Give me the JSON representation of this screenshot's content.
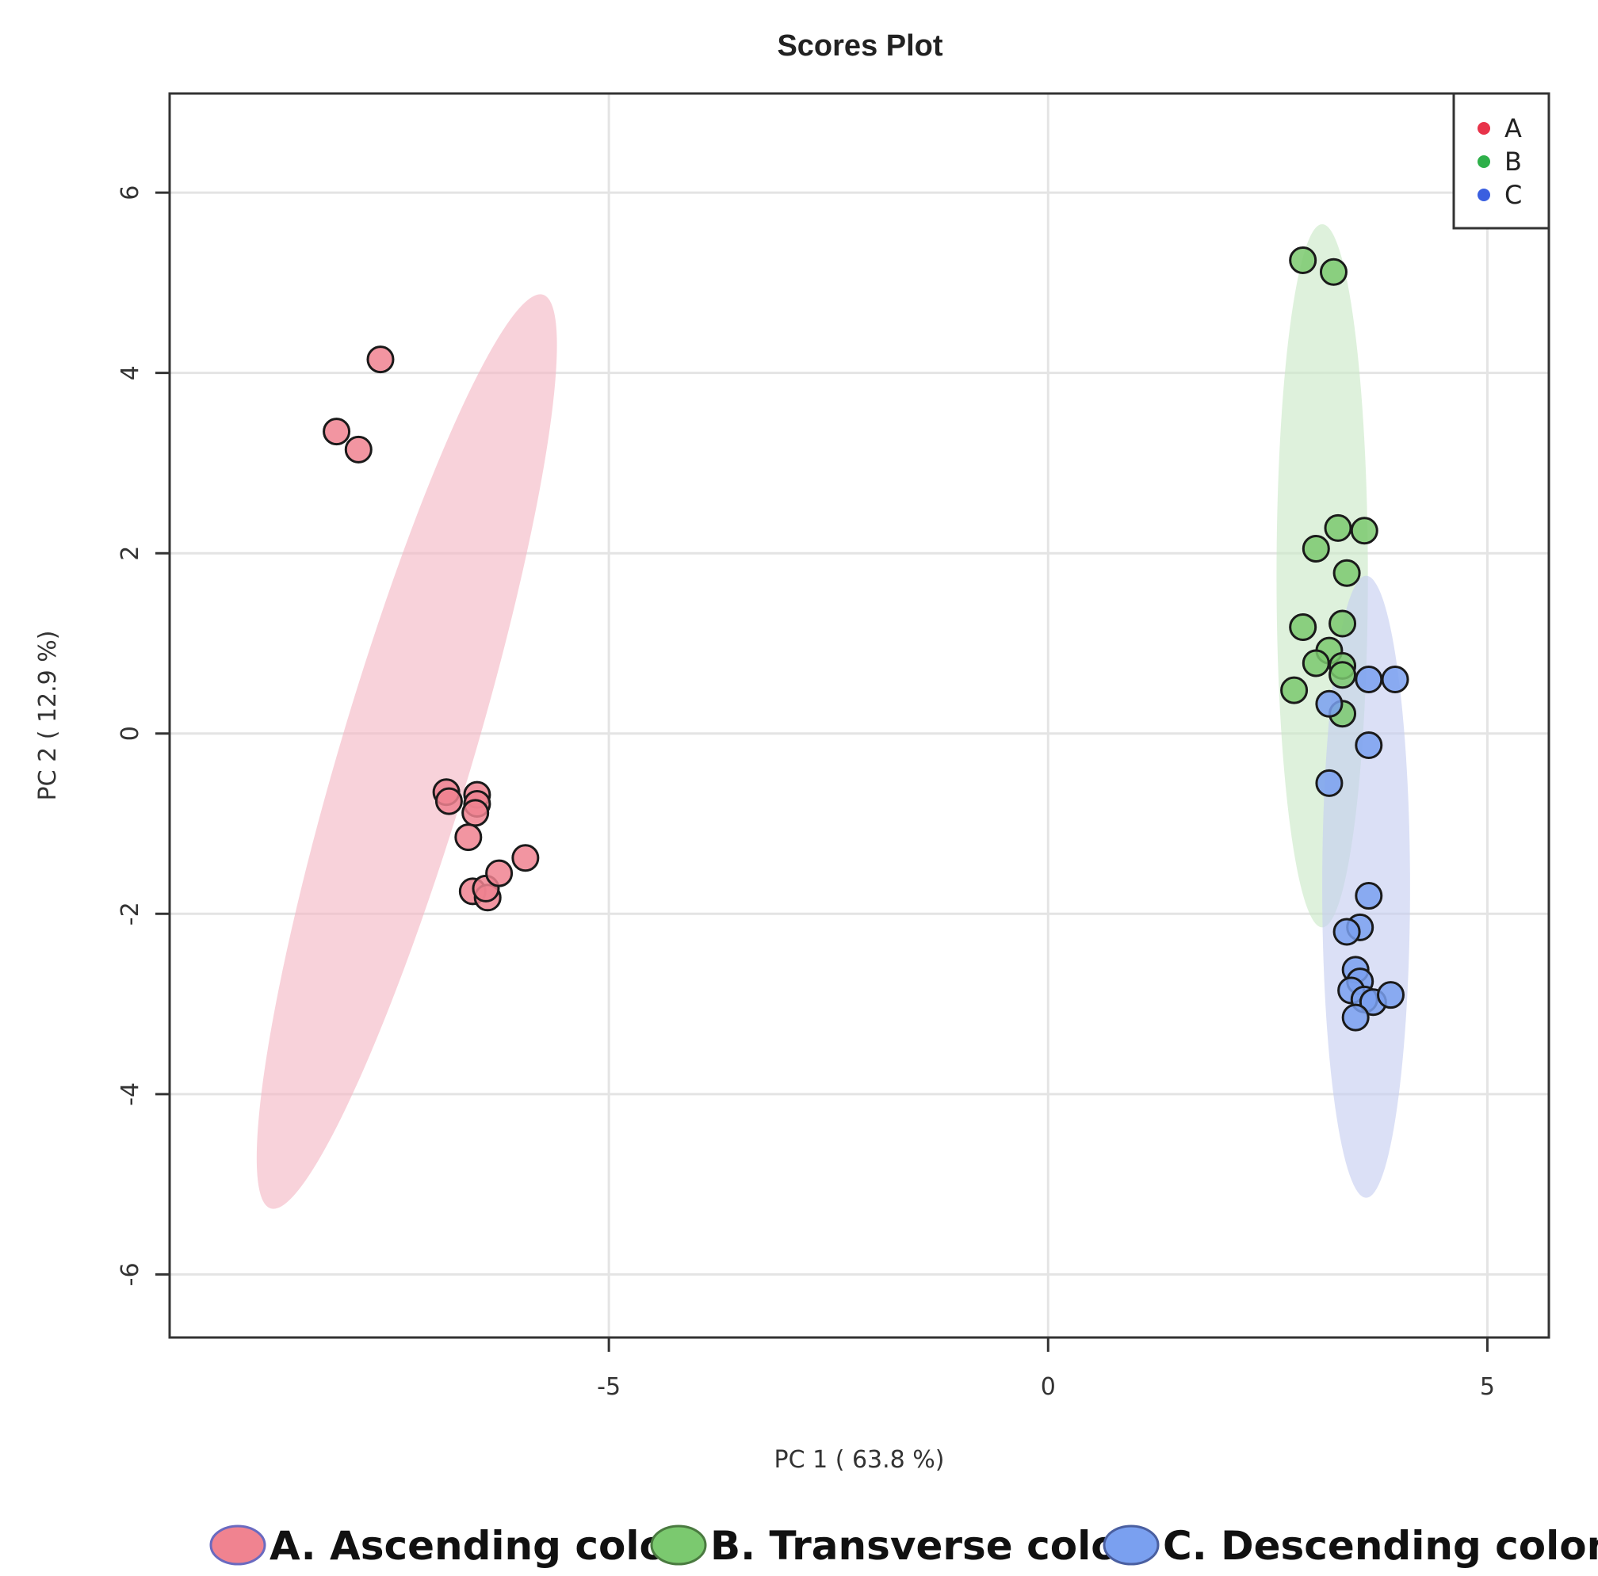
{
  "chart_data": {
    "type": "scatter",
    "title": "Scores Plot",
    "xlabel": "PC 1 ( 63.8 %)",
    "ylabel": "PC 2 ( 12.9 %)",
    "xlim": [
      -10,
      5.7
    ],
    "ylim": [
      -6.7,
      7.1
    ],
    "xticks": [
      -5,
      0,
      5
    ],
    "xtick_labels": [
      "-5",
      "0",
      "5"
    ],
    "yticks": [
      -6,
      -4,
      -2,
      0,
      2,
      4,
      6
    ],
    "ytick_labels": [
      "-6",
      "-4",
      "-2",
      "0",
      "2",
      "4",
      "6"
    ],
    "grid": true,
    "legend_position": "top-right",
    "series": [
      {
        "name": "A",
        "color": "#e8334a",
        "fill": "#f08390",
        "ellipse_fill": "#f4b6c3",
        "points": [
          [
            -7.6,
            4.15
          ],
          [
            -8.1,
            3.35
          ],
          [
            -7.85,
            3.15
          ],
          [
            -6.85,
            -0.65
          ],
          [
            -6.82,
            -0.75
          ],
          [
            -6.5,
            -0.68
          ],
          [
            -6.5,
            -0.78
          ],
          [
            -6.52,
            -0.88
          ],
          [
            -6.6,
            -1.15
          ],
          [
            -6.55,
            -1.75
          ],
          [
            -6.38,
            -1.82
          ],
          [
            -6.4,
            -1.72
          ],
          [
            -6.25,
            -1.55
          ],
          [
            -5.95,
            -1.38
          ]
        ],
        "ellipse": {
          "cx": -7.3,
          "cy": -0.2,
          "rx": 5.3,
          "ry": 0.75,
          "angle_deg": 73
        }
      },
      {
        "name": "B",
        "color": "#2eb04a",
        "fill": "#7bc96f",
        "ellipse_fill": "#c9e8c6",
        "points": [
          [
            2.9,
            5.25
          ],
          [
            3.25,
            5.12
          ],
          [
            3.3,
            2.28
          ],
          [
            3.6,
            2.25
          ],
          [
            3.05,
            2.05
          ],
          [
            3.4,
            1.78
          ],
          [
            2.9,
            1.18
          ],
          [
            3.35,
            1.22
          ],
          [
            3.2,
            0.92
          ],
          [
            3.05,
            0.78
          ],
          [
            3.35,
            0.75
          ],
          [
            3.35,
            0.65
          ],
          [
            2.8,
            0.48
          ],
          [
            3.35,
            0.22
          ]
        ],
        "ellipse": {
          "cx": 3.12,
          "cy": 1.75,
          "rx": 0.52,
          "ry": 3.9,
          "angle_deg": 0
        }
      },
      {
        "name": "C",
        "color": "#3a5fe0",
        "fill": "#7aa0f0",
        "ellipse_fill": "#c5cdf0",
        "points": [
          [
            3.65,
            0.6
          ],
          [
            3.95,
            0.6
          ],
          [
            3.2,
            0.33
          ],
          [
            3.65,
            -0.13
          ],
          [
            3.2,
            -0.55
          ],
          [
            3.65,
            -1.8
          ],
          [
            3.55,
            -2.15
          ],
          [
            3.4,
            -2.2
          ],
          [
            3.5,
            -2.62
          ],
          [
            3.55,
            -2.75
          ],
          [
            3.45,
            -2.85
          ],
          [
            3.6,
            -2.95
          ],
          [
            3.7,
            -2.98
          ],
          [
            3.9,
            -2.9
          ],
          [
            3.5,
            -3.15
          ]
        ],
        "ellipse": {
          "cx": 3.62,
          "cy": -1.7,
          "rx": 0.5,
          "ry": 3.45,
          "angle_deg": 0
        }
      }
    ]
  },
  "legend": {
    "items": [
      {
        "label": "A",
        "color": "#e8334a"
      },
      {
        "label": "B",
        "color": "#2eb04a"
      },
      {
        "label": "C",
        "color": "#3a5fe0"
      }
    ]
  },
  "bottom_legend": {
    "items": [
      {
        "label": "A. Ascending colon",
        "fill": "#f08390",
        "stroke": "#6a6ac0"
      },
      {
        "label": "B. Transverse colon",
        "fill": "#7bc96f",
        "stroke": "#4a7a40"
      },
      {
        "label": "C. Descending colon",
        "fill": "#7aa0f0",
        "stroke": "#4a5fa0"
      }
    ]
  }
}
